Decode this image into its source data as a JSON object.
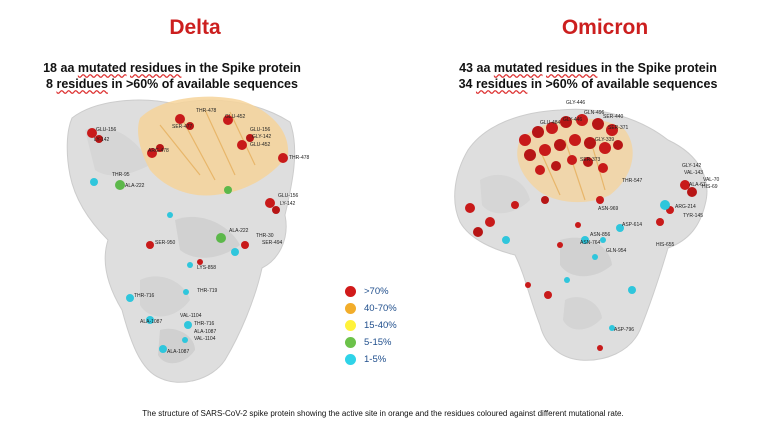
{
  "left": {
    "title": "Delta",
    "line1_pre": "18 aa ",
    "line1_u1": "mutated",
    "line1_mid": " ",
    "line1_u2": "residues",
    "line1_post": " in the Spike protein",
    "line2_pre": "8 ",
    "line2_u1": "residues",
    "line2_post": " in >60% of available sequences",
    "labels": [
      "GLU-156",
      "LY-142",
      "THR-478",
      "SER-477",
      "GLU-452",
      "GLU-156",
      "GLY-142",
      "GLU-452",
      "THR-478",
      "THR-95",
      "ALA-222",
      "GLU-156",
      "LY-142",
      "ALA-222",
      "THR-30",
      "SER-950",
      "LYS-858",
      "THR-719",
      "THR-716",
      "VAL-1104",
      "ALA-1087",
      "THR-716",
      "ALA-1087",
      "VAL-1104",
      "ALA-1087",
      "ARG-478",
      "SER-494"
    ]
  },
  "right": {
    "title": "Omicron",
    "line1_pre": "43 aa ",
    "line1_u1": "mutated",
    "line1_mid": " ",
    "line1_u2": "residues",
    "line1_post": " in the Spike protein",
    "line2_pre": "34 ",
    "line2_u1": "residues",
    "line2_post": " in >60% of available sequences",
    "labels": [
      "GLY-446",
      "GLN-496",
      "SER-440",
      "GLU-484",
      "GLY-446",
      "SER-371",
      "GLY-142",
      "VAL-143",
      "VAL-70",
      "ALA-67",
      "HIS-69",
      "THR-547",
      "ASN-969",
      "ASP-614",
      "ARG-214",
      "TYR-145",
      "ASN-856",
      "HIS-655",
      "ASN-764",
      "GLN-954",
      "ASP-796",
      "GLY-339",
      "SER-373"
    ]
  },
  "legend": [
    {
      "label": ">70%",
      "color": "#d11a1a"
    },
    {
      "label": "40-70%",
      "color": "#f2ad2b"
    },
    {
      "label": "15-40%",
      "color": "#fff23a"
    },
    {
      "label": "5-15%",
      "color": "#6cc24a"
    },
    {
      "label": "1-5%",
      "color": "#2fd3e8"
    }
  ],
  "caption": "The structure of SARS-CoV-2 spike protein showing the active site in orange and the residues coloured against different mutational rate."
}
